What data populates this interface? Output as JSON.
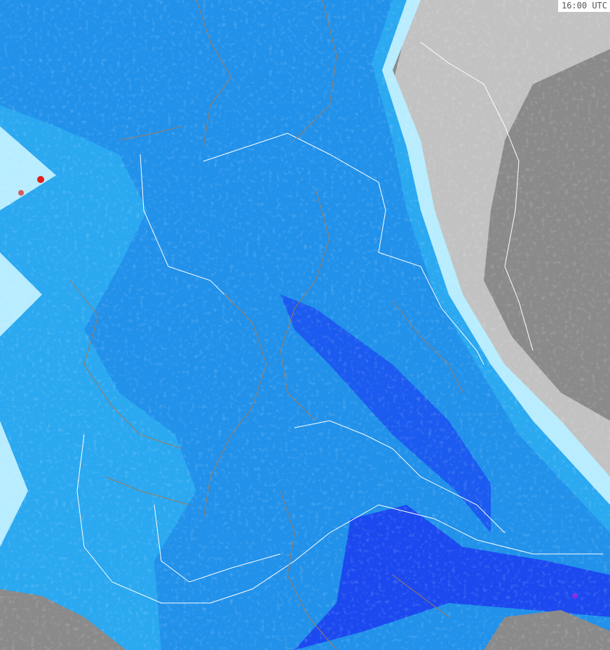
{
  "timestamp": "16:00 UTC",
  "colors": {
    "land_no_echo": "#8a8a8a",
    "light_precip": "#b8ecff",
    "medium_precip": "#2aa8f0",
    "heavy_precip": "#1f6fe8",
    "very_heavy_precip": "#1a3cf0",
    "extreme_precip": "#e0201c",
    "border_region": "#a07a5a",
    "border_country": "#ffffff"
  }
}
